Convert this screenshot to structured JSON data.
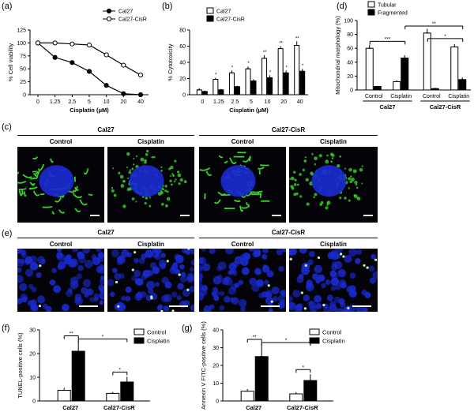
{
  "panels": {
    "a": "(a)",
    "b": "(b)",
    "c": "(c)",
    "d": "(d)",
    "e": "(e)",
    "f": "(f)",
    "g": "(g)"
  },
  "chart_data": [
    {
      "panel": "a",
      "type": "line",
      "x": [
        "0",
        "1.25",
        "2.5",
        "5",
        "10",
        "20",
        "40"
      ],
      "xlabel": "Cisplatin (μM)",
      "ylabel": "% Cell viability",
      "ylim": [
        0,
        125
      ],
      "yticks": [
        "0",
        "25",
        "50",
        "75",
        "100",
        "125"
      ],
      "series": [
        {
          "name": "Cal27",
          "values": [
            100,
            72,
            62,
            45,
            18,
            2,
            0
          ],
          "err": [
            4,
            4,
            4,
            3,
            3,
            1,
            1
          ],
          "marker": "filled"
        },
        {
          "name": "Cal27-CisR",
          "values": [
            100,
            100,
            98,
            96,
            77,
            57,
            38
          ],
          "err": [
            4,
            4,
            4,
            3,
            4,
            4,
            4
          ],
          "marker": "open"
        }
      ]
    },
    {
      "panel": "b",
      "type": "bar",
      "categories": [
        "0",
        "1.25",
        "2.5",
        "5",
        "10",
        "20",
        "40"
      ],
      "xlabel": "Cisplatin (μM)",
      "ylabel": "% Cytotoxicity",
      "ylim": [
        0,
        80
      ],
      "yticks": [
        "0",
        "20",
        "40",
        "60",
        "80"
      ],
      "sig": [
        "",
        "*",
        "*",
        "*",
        "**",
        "**",
        "**"
      ],
      "sig2": [
        "",
        "",
        "",
        "",
        "*",
        "*",
        "*"
      ],
      "series": [
        {
          "name": "Cal27",
          "values": [
            6,
            19,
            27,
            32,
            45,
            57,
            61
          ],
          "err": [
            2,
            2,
            3,
            3,
            4,
            3,
            5
          ],
          "fill": "open"
        },
        {
          "name": "Cal27-CisR",
          "values": [
            4,
            6,
            10,
            17,
            21,
            27,
            29
          ],
          "err": [
            1,
            1,
            1,
            2,
            3,
            3,
            3
          ],
          "fill": "black"
        }
      ]
    },
    {
      "panel": "d",
      "type": "bar",
      "categories": [
        "Control",
        "Cisplatin",
        "Control",
        "Cisplatin"
      ],
      "groups": [
        "Cal27",
        "Cal27-CisR"
      ],
      "ylabel": "Mitochondrial morphology (%)",
      "ylim": [
        0,
        100
      ],
      "yticks": [
        "0",
        "20",
        "40",
        "60",
        "80",
        "100"
      ],
      "sig": [
        "***",
        "*",
        "**"
      ],
      "series": [
        {
          "name": "Tubular",
          "values": [
            60,
            12,
            82,
            62
          ],
          "err": [
            5,
            2,
            6,
            4
          ],
          "fill": "open"
        },
        {
          "name": "Fragmented",
          "values": [
            5,
            46,
            2,
            15
          ],
          "err": [
            1,
            4,
            1,
            3
          ],
          "fill": "black"
        }
      ]
    },
    {
      "panel": "f",
      "type": "bar",
      "groups": [
        "Cal27",
        "Cal27-CisR"
      ],
      "ylabel": "TUNEL-positive cells (%)",
      "ylim": [
        0,
        30
      ],
      "yticks": [
        "0",
        "10",
        "20",
        "30"
      ],
      "sig": [
        "**",
        "*",
        "*"
      ],
      "series": [
        {
          "name": "Control",
          "values": [
            4.5,
            3.2
          ],
          "err": [
            1,
            0.6
          ],
          "fill": "open"
        },
        {
          "name": "Cisplatin",
          "values": [
            21,
            8
          ],
          "err": [
            4.5,
            2.2
          ],
          "fill": "black"
        }
      ]
    },
    {
      "panel": "g",
      "type": "bar",
      "groups": [
        "Cal27",
        "Cal27-CisR"
      ],
      "ylabel": "Annexin V FITC-positive cells (%)",
      "ylim": [
        0,
        40
      ],
      "yticks": [
        "0",
        "10",
        "20",
        "30",
        "40"
      ],
      "sig": [
        "**",
        "*",
        "*"
      ],
      "series": [
        {
          "name": "Control",
          "values": [
            5.5,
            4
          ],
          "err": [
            1.2,
            1
          ],
          "fill": "open"
        },
        {
          "name": "Cisplatin",
          "values": [
            25,
            11.5
          ],
          "err": [
            7,
            3.5
          ],
          "fill": "black"
        }
      ]
    }
  ],
  "imaging": {
    "c": {
      "groups": [
        "Cal27",
        "Cal27-CisR"
      ],
      "conditions": [
        "Control",
        "Cisplatin",
        "Control",
        "Cisplatin"
      ]
    },
    "e": {
      "groups": [
        "Cal27",
        "Cal27-CisR"
      ],
      "conditions": [
        "Control",
        "Cisplatin",
        "Control",
        "Cisplatin"
      ]
    }
  },
  "colors": {
    "nucleus": "#1a2ad0",
    "mito": "#39d22a",
    "background": "#030308"
  }
}
